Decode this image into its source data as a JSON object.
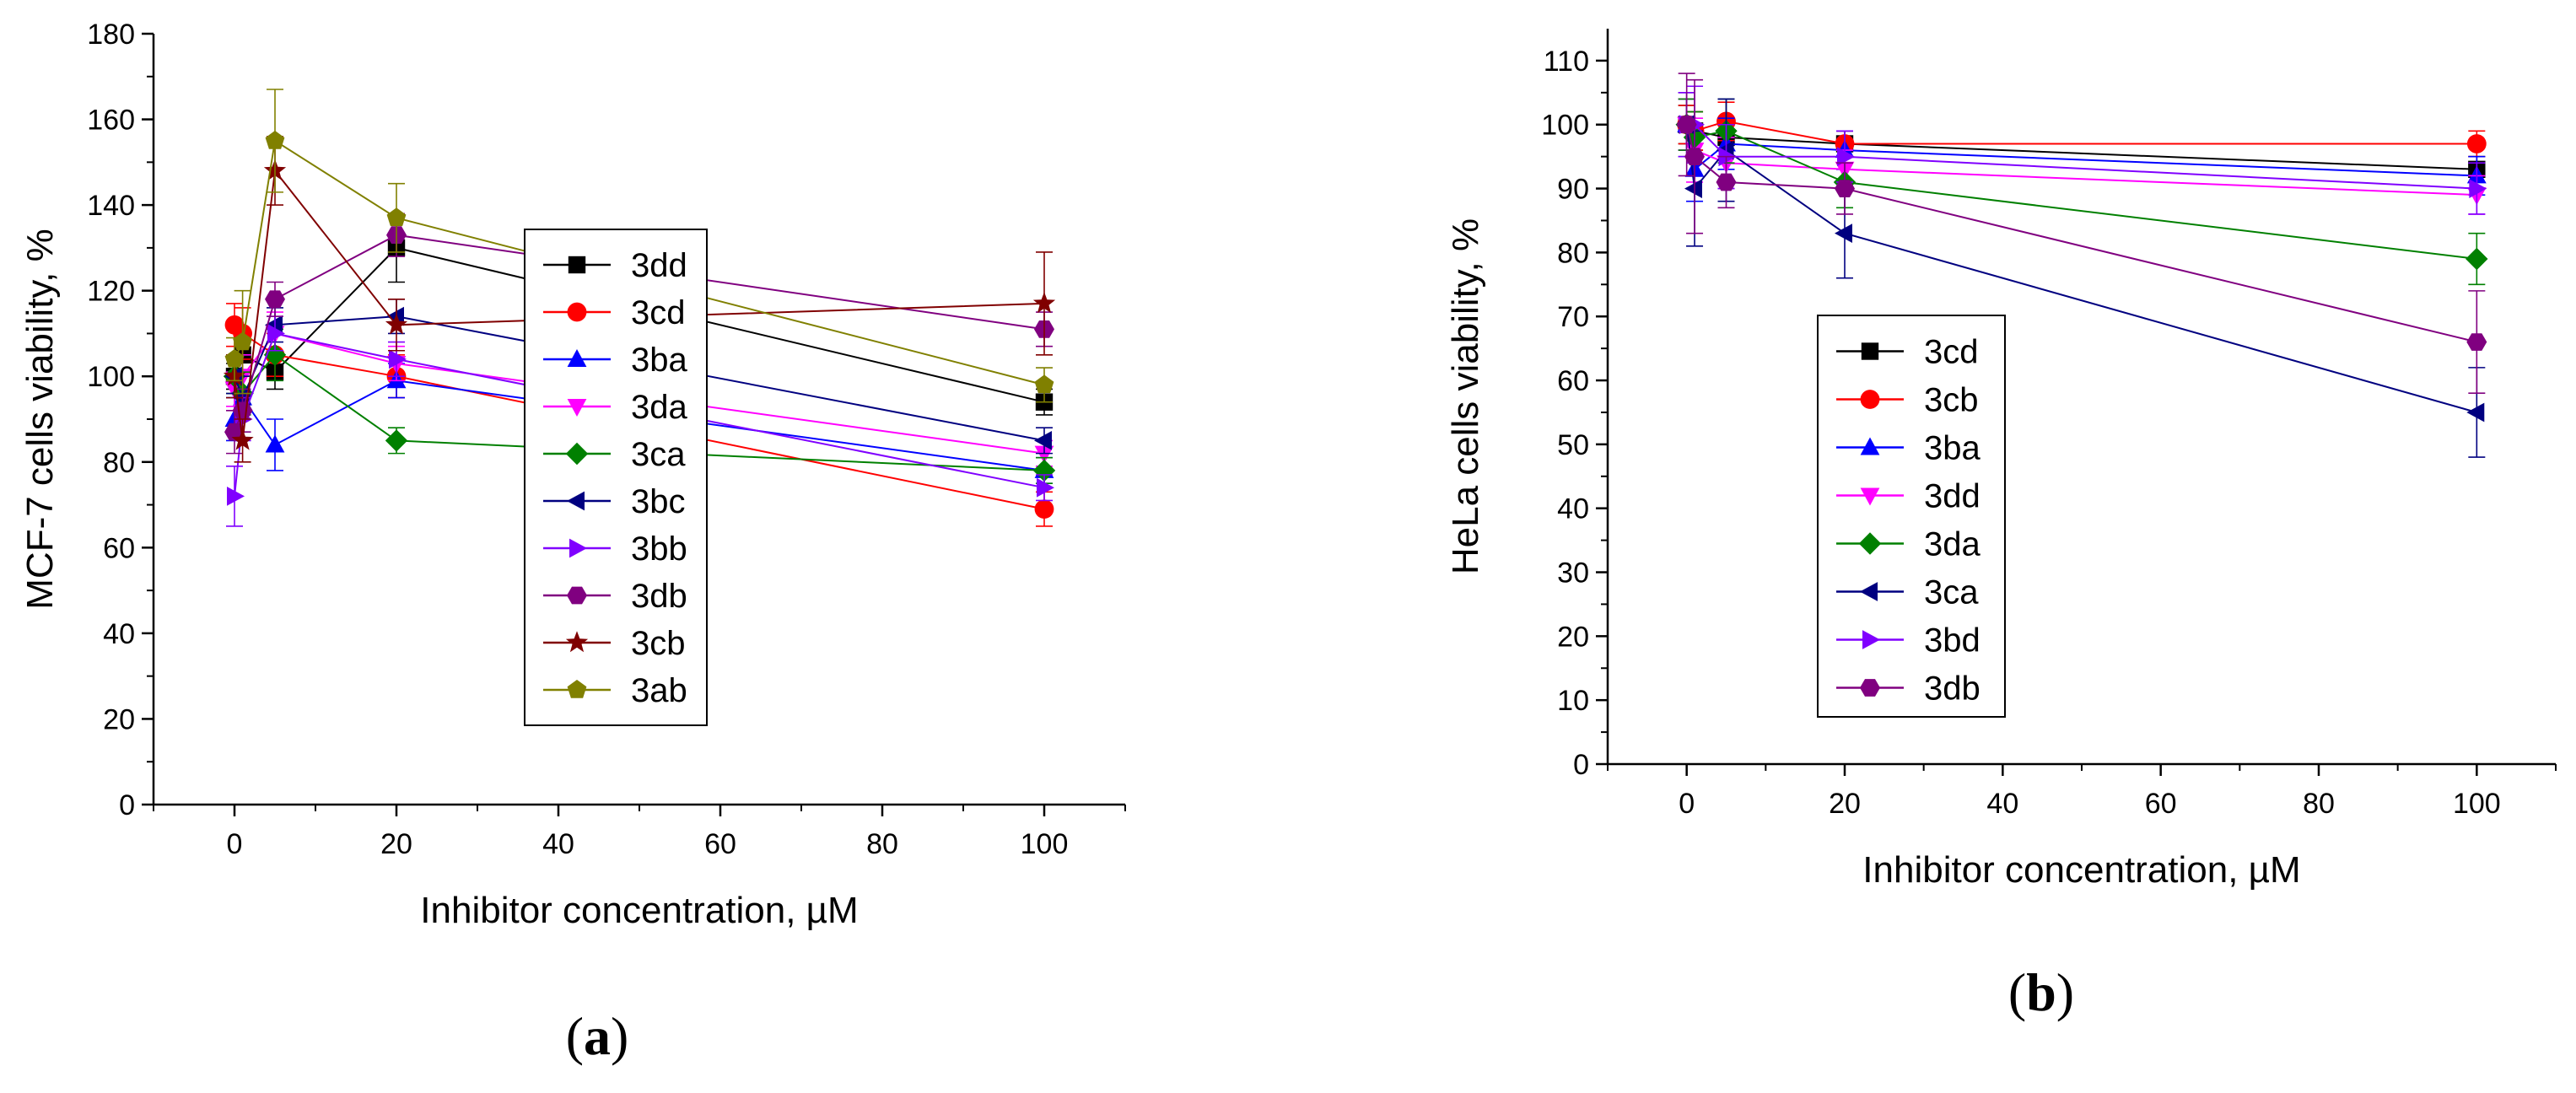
{
  "chart_data": [
    {
      "id": "a",
      "type": "line",
      "panel_label": "(a)",
      "panel_letter": "a",
      "xlabel": "Inhibitor concentration, µM",
      "ylabel": "MCF-7 cells viability, %",
      "xlim": [
        -10,
        110
      ],
      "ylim": [
        0,
        180
      ],
      "xticks": [
        0,
        20,
        40,
        60,
        80,
        100
      ],
      "yticks": [
        0,
        20,
        40,
        60,
        80,
        100,
        120,
        140,
        160,
        180
      ],
      "legend_position": "center",
      "series": [
        {
          "name": "3dd",
          "color": "#000000",
          "marker": "square",
          "x": [
            0,
            1,
            5,
            20,
            100
          ],
          "y": [
            100,
            105,
            101,
            130,
            94
          ],
          "err": [
            3,
            5,
            4,
            8,
            3
          ]
        },
        {
          "name": "3cd",
          "color": "#ff0000",
          "marker": "circle",
          "x": [
            0,
            1,
            5,
            20,
            100
          ],
          "y": [
            112,
            110,
            105,
            100,
            69
          ],
          "err": [
            5,
            6,
            5,
            5,
            4
          ]
        },
        {
          "name": "3ba",
          "color": "#0000ff",
          "marker": "triangle-up",
          "x": [
            0,
            1,
            5,
            20,
            100
          ],
          "y": [
            90,
            95,
            84,
            99,
            78
          ],
          "err": [
            5,
            5,
            6,
            4,
            3
          ]
        },
        {
          "name": "3da",
          "color": "#ff00ff",
          "marker": "triangle-down",
          "x": [
            0,
            1,
            5,
            20,
            100
          ],
          "y": [
            97,
            100,
            110,
            103,
            82
          ],
          "err": [
            4,
            5,
            5,
            4,
            3
          ]
        },
        {
          "name": "3ca",
          "color": "#008000",
          "marker": "diamond",
          "x": [
            0,
            1,
            5,
            20,
            100
          ],
          "y": [
            100,
            96,
            105,
            85,
            78
          ],
          "err": [
            4,
            5,
            6,
            3,
            3
          ]
        },
        {
          "name": "3bc",
          "color": "#000080",
          "marker": "triangle-left",
          "x": [
            0,
            1,
            5,
            20,
            100
          ],
          "y": [
            100,
            95,
            112,
            114,
            85
          ],
          "err": [
            4,
            5,
            4,
            4,
            3
          ]
        },
        {
          "name": "3bb",
          "color": "#8000ff",
          "marker": "triangle-right",
          "x": [
            0,
            1,
            5,
            20,
            100
          ],
          "y": [
            72,
            90,
            110,
            104,
            74
          ],
          "err": [
            7,
            5,
            4,
            4,
            3
          ]
        },
        {
          "name": "3db",
          "color": "#800080",
          "marker": "hexagon",
          "x": [
            0,
            1,
            5,
            20,
            100
          ],
          "y": [
            87,
            92,
            118,
            133,
            111
          ],
          "err": [
            5,
            5,
            4,
            5,
            4
          ]
        },
        {
          "name": "3cb",
          "color": "#800000",
          "marker": "star",
          "x": [
            0,
            1,
            5,
            20,
            100
          ],
          "y": [
            100,
            85,
            148,
            112,
            117
          ],
          "err": [
            5,
            5,
            8,
            6,
            12
          ]
        },
        {
          "name": "3ab",
          "color": "#808000",
          "marker": "pentagon",
          "x": [
            0,
            1,
            5,
            20,
            100
          ],
          "y": [
            104,
            108,
            155,
            137,
            98
          ],
          "err": [
            5,
            12,
            12,
            8,
            4
          ]
        }
      ]
    },
    {
      "id": "b",
      "type": "line",
      "panel_label": "(b)",
      "panel_letter": "b",
      "xlabel": "Inhibitor concentration, µM",
      "ylabel": "HeLa cells viability, %",
      "xlim": [
        -10,
        110
      ],
      "ylim": [
        0,
        115
      ],
      "xticks": [
        0,
        20,
        40,
        60,
        80,
        100
      ],
      "yticks": [
        0,
        10,
        20,
        30,
        40,
        50,
        60,
        70,
        80,
        90,
        100,
        110
      ],
      "legend_position": "center-left",
      "series": [
        {
          "name": "3cd",
          "color": "#000000",
          "marker": "square",
          "x": [
            0,
            1,
            5,
            20,
            100
          ],
          "y": [
            100,
            99,
            98,
            97,
            93
          ],
          "err": [
            3,
            3,
            3,
            2,
            2
          ]
        },
        {
          "name": "3cb",
          "color": "#ff0000",
          "marker": "circle",
          "x": [
            0,
            1,
            5,
            20,
            100
          ],
          "y": [
            100,
            99,
            100.5,
            97,
            97
          ],
          "err": [
            3,
            3,
            3,
            2,
            2
          ]
        },
        {
          "name": "3ba",
          "color": "#0000ff",
          "marker": "triangle-up",
          "x": [
            0,
            1,
            5,
            20,
            100
          ],
          "y": [
            100,
            93,
            97,
            96,
            92
          ],
          "err": [
            4,
            5,
            4,
            3,
            3
          ]
        },
        {
          "name": "3dd",
          "color": "#ff00ff",
          "marker": "triangle-down",
          "x": [
            0,
            1,
            5,
            20,
            100
          ],
          "y": [
            100,
            96,
            94,
            93,
            89
          ],
          "err": [
            4,
            5,
            4,
            3,
            3
          ]
        },
        {
          "name": "3da",
          "color": "#008000",
          "marker": "diamond",
          "x": [
            0,
            1,
            5,
            20,
            100
          ],
          "y": [
            100,
            98,
            99,
            91,
            79
          ],
          "err": [
            4,
            4,
            5,
            4,
            4
          ]
        },
        {
          "name": "3ca",
          "color": "#000080",
          "marker": "triangle-left",
          "x": [
            0,
            1,
            5,
            20,
            100
          ],
          "y": [
            100,
            90,
            96,
            83,
            55
          ],
          "err": [
            5,
            9,
            8,
            7,
            7
          ]
        },
        {
          "name": "3bd",
          "color": "#8000ff",
          "marker": "triangle-right",
          "x": [
            0,
            1,
            5,
            20,
            100
          ],
          "y": [
            100,
            100,
            95,
            95,
            90
          ],
          "err": [
            5,
            6,
            5,
            4,
            4
          ]
        },
        {
          "name": "3db",
          "color": "#800080",
          "marker": "hexagon",
          "x": [
            0,
            1,
            5,
            20,
            100
          ],
          "y": [
            100,
            95,
            91,
            90,
            66
          ],
          "err": [
            8,
            12,
            4,
            4,
            8
          ]
        }
      ]
    }
  ]
}
